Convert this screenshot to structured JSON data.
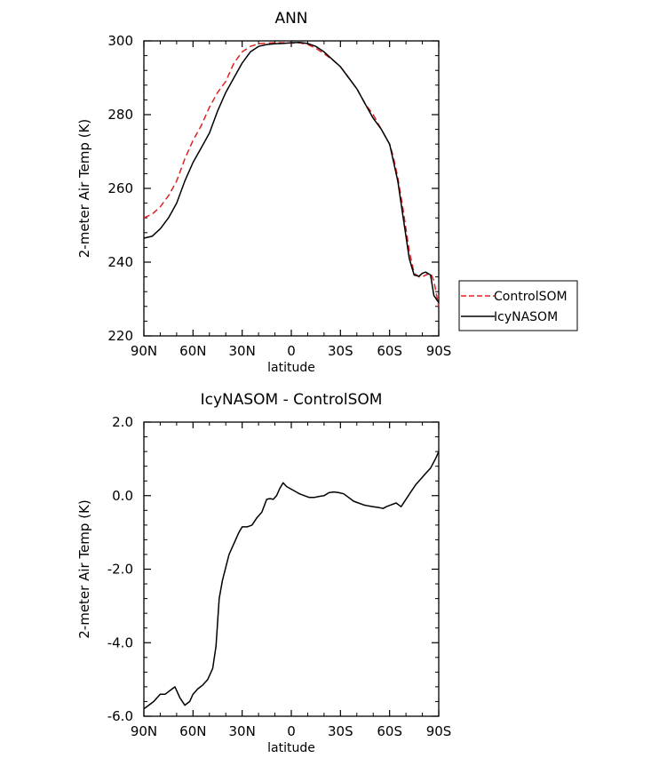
{
  "chart_data": [
    {
      "type": "line",
      "title": "ANN",
      "xlabel": "latitude",
      "ylabel": "2-meter Air Temp (K)",
      "xlim": [
        90,
        -90
      ],
      "ylim": [
        220,
        300
      ],
      "x_ticks": [
        90,
        60,
        30,
        0,
        -30,
        -60,
        -90
      ],
      "x_tick_labels": [
        "90N",
        "60N",
        "30N",
        "0",
        "30S",
        "60S",
        "90S"
      ],
      "y_ticks": [
        220,
        240,
        260,
        280,
        300
      ],
      "y_tick_labels": [
        "220",
        "240",
        "260",
        "280",
        "300"
      ],
      "legend_position": "right",
      "series": [
        {
          "name": "ControlSOM",
          "color": "#e02020",
          "dash": "dashed",
          "x": [
            90,
            85,
            80,
            75,
            70,
            65,
            60,
            55,
            50,
            45,
            40,
            35,
            30,
            25,
            20,
            15,
            10,
            5,
            0,
            -5,
            -10,
            -15,
            -20,
            -25,
            -30,
            -35,
            -40,
            -45,
            -50,
            -55,
            -60,
            -62,
            -65,
            -68,
            -70,
            -72,
            -75,
            -78,
            -80,
            -82,
            -85,
            -87,
            -90
          ],
          "y": [
            252,
            253,
            255,
            258,
            262,
            268,
            273,
            277,
            282,
            286,
            289,
            294,
            297,
            298.5,
            299.2,
            299.4,
            299.5,
            299.5,
            299.4,
            299.5,
            299,
            298,
            296.5,
            295,
            293,
            290,
            287,
            283,
            280,
            276,
            272,
            269,
            263,
            255,
            249,
            243,
            237,
            236,
            236,
            236.5,
            237,
            235,
            228
          ]
        },
        {
          "name": "IcyNASOM",
          "color": "#000000",
          "dash": "solid",
          "x": [
            90,
            85,
            80,
            75,
            70,
            65,
            60,
            55,
            50,
            45,
            40,
            35,
            30,
            25,
            20,
            15,
            10,
            5,
            0,
            -5,
            -10,
            -15,
            -20,
            -25,
            -30,
            -35,
            -40,
            -45,
            -50,
            -55,
            -60,
            -62,
            -65,
            -68,
            -70,
            -72,
            -75,
            -78,
            -80,
            -82,
            -85,
            -87,
            -90
          ],
          "y": [
            246.5,
            247,
            249,
            252,
            256,
            262,
            267,
            271,
            275,
            281,
            286,
            290,
            294,
            297,
            298.5,
            299,
            299.2,
            299.3,
            299.5,
            299.6,
            299.3,
            298.5,
            297,
            295,
            293,
            290,
            287,
            283,
            279,
            276,
            272,
            268,
            262,
            253,
            247,
            241,
            236.5,
            236.2,
            237,
            237.3,
            236.5,
            231,
            229
          ]
        }
      ]
    },
    {
      "type": "line",
      "title": "IcyNASOM - ControlSOM",
      "xlabel": "latitude",
      "ylabel": "2-meter Air Temp (K)",
      "xlim": [
        90,
        -90
      ],
      "ylim": [
        -6.0,
        2.0
      ],
      "x_ticks": [
        90,
        60,
        30,
        0,
        -30,
        -60,
        -90
      ],
      "x_tick_labels": [
        "90N",
        "60N",
        "30N",
        "0",
        "30S",
        "60S",
        "90S"
      ],
      "y_ticks": [
        -6,
        -4,
        -2,
        0,
        2
      ],
      "y_tick_labels": [
        "-6.0",
        "-4.0",
        "-2.0",
        "0.0",
        "2.0"
      ],
      "series": [
        {
          "color": "#000000",
          "dash": "solid",
          "x": [
            90,
            87,
            84,
            80,
            77,
            74,
            71,
            68,
            65,
            62,
            60,
            57,
            54,
            51,
            48,
            46,
            44,
            42,
            40,
            38,
            36,
            34,
            32,
            30,
            27,
            24,
            21,
            18,
            15,
            13,
            11,
            9,
            7,
            5,
            3,
            1,
            -1,
            -3,
            -5,
            -8,
            -11,
            -14,
            -17,
            -20,
            -23,
            -26,
            -29,
            -32,
            -35,
            -38,
            -41,
            -44,
            -47,
            -50,
            -53,
            -56,
            -58,
            -61,
            -64,
            -67,
            -70,
            -73,
            -76,
            -79,
            -82,
            -85,
            -88,
            -90
          ],
          "y": [
            -5.8,
            -5.7,
            -5.6,
            -5.4,
            -5.4,
            -5.3,
            -5.2,
            -5.5,
            -5.7,
            -5.6,
            -5.4,
            -5.25,
            -5.15,
            -5.0,
            -4.7,
            -4.1,
            -2.8,
            -2.3,
            -1.95,
            -1.6,
            -1.4,
            -1.2,
            -1.0,
            -0.85,
            -0.85,
            -0.8,
            -0.6,
            -0.45,
            -0.1,
            -0.08,
            -0.1,
            0.0,
            0.2,
            0.35,
            0.25,
            0.2,
            0.15,
            0.1,
            0.05,
            0.0,
            -0.05,
            -0.05,
            -0.02,
            0.0,
            0.08,
            0.1,
            0.08,
            0.05,
            -0.05,
            -0.15,
            -0.2,
            -0.25,
            -0.28,
            -0.3,
            -0.32,
            -0.35,
            -0.3,
            -0.25,
            -0.2,
            -0.3,
            -0.1,
            0.1,
            0.3,
            0.45,
            0.6,
            0.75,
            1.0,
            1.2
          ]
        }
      ]
    }
  ]
}
